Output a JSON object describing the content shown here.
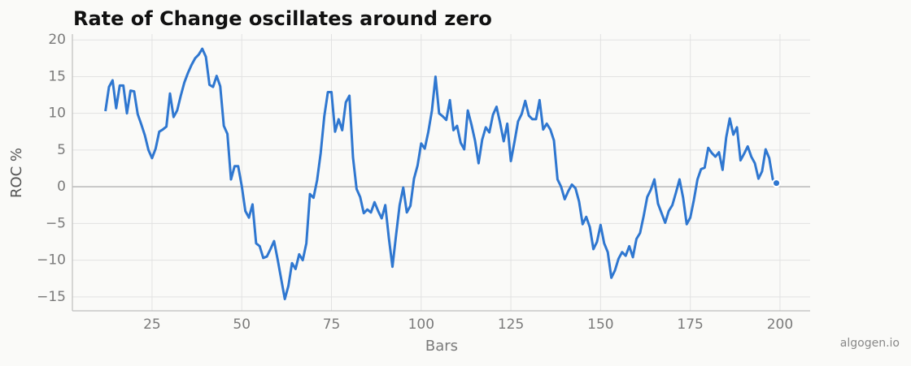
{
  "chart_data": {
    "type": "line",
    "title": "Rate of Change oscillates around zero",
    "x_label": "Bars",
    "y_label": "ROC %",
    "watermark": "algogen.io",
    "x": [
      12,
      13,
      14,
      15,
      16,
      17,
      18,
      19,
      20,
      21,
      22,
      23,
      24,
      25,
      26,
      27,
      28,
      29,
      30,
      31,
      32,
      33,
      34,
      35,
      36,
      37,
      38,
      39,
      40,
      41,
      42,
      43,
      44,
      45,
      46,
      47,
      48,
      49,
      50,
      51,
      52,
      53,
      54,
      55,
      56,
      57,
      58,
      59,
      60,
      61,
      62,
      63,
      64,
      65,
      66,
      67,
      68,
      69,
      70,
      71,
      72,
      73,
      74,
      75,
      76,
      77,
      78,
      79,
      80,
      81,
      82,
      83,
      84,
      85,
      86,
      87,
      88,
      89,
      90,
      91,
      92,
      93,
      94,
      95,
      96,
      97,
      98,
      99,
      100,
      101,
      102,
      103,
      104,
      105,
      106,
      107,
      108,
      109,
      110,
      111,
      112,
      113,
      114,
      115,
      116,
      117,
      118,
      119,
      120,
      121,
      122,
      123,
      124,
      125,
      126,
      127,
      128,
      129,
      130,
      131,
      132,
      133,
      134,
      135,
      136,
      137,
      138,
      139,
      140,
      141,
      142,
      143,
      144,
      145,
      146,
      147,
      148,
      149,
      150,
      151,
      152,
      153,
      154,
      155,
      156,
      157,
      158,
      159,
      160,
      161,
      162,
      163,
      164,
      165,
      166,
      167,
      168,
      169,
      170,
      171,
      172,
      173,
      174,
      175,
      176,
      177,
      178,
      179,
      180,
      181,
      182,
      183,
      184,
      185,
      186,
      187,
      188,
      189,
      190,
      191,
      192,
      193,
      194,
      195,
      196,
      197,
      198,
      199
    ],
    "series": [
      {
        "name": "ROC",
        "color": "#2f77d0",
        "values": [
          10.3,
          13.6,
          14.5,
          10.7,
          13.8,
          13.8,
          10.0,
          13.1,
          13.0,
          9.9,
          8.5,
          7.0,
          5.0,
          3.9,
          5.2,
          7.5,
          7.8,
          8.2,
          12.7,
          9.5,
          10.4,
          12.4,
          14.2,
          15.5,
          16.6,
          17.5,
          18.0,
          18.8,
          17.7,
          13.9,
          13.6,
          15.1,
          13.7,
          8.3,
          7.2,
          1.0,
          2.8,
          2.8,
          0.1,
          -3.3,
          -4.2,
          -2.4,
          -7.7,
          -8.1,
          -9.7,
          -9.5,
          -8.5,
          -7.4,
          -9.9,
          -12.6,
          -15.3,
          -13.5,
          -10.4,
          -11.2,
          -9.2,
          -10.0,
          -7.7,
          -1.0,
          -1.5,
          0.9,
          4.6,
          9.6,
          12.9,
          12.9,
          7.5,
          9.2,
          7.7,
          11.5,
          12.4,
          4.0,
          -0.3,
          -1.4,
          -3.6,
          -3.1,
          -3.5,
          -2.1,
          -3.3,
          -4.3,
          -2.5,
          -7.0,
          -10.9,
          -6.6,
          -2.5,
          -0.1,
          -3.5,
          -2.6,
          1.1,
          2.9,
          5.9,
          5.2,
          7.5,
          10.4,
          15.0,
          10.0,
          9.6,
          9.1,
          11.8,
          7.7,
          8.3,
          6.0,
          5.1,
          10.4,
          8.5,
          6.3,
          3.2,
          6.4,
          8.1,
          7.4,
          9.8,
          10.9,
          8.7,
          6.2,
          8.6,
          3.5,
          6.1,
          8.9,
          9.9,
          11.7,
          9.7,
          9.2,
          9.2,
          11.8,
          7.8,
          8.6,
          7.8,
          6.3,
          1.0,
          0.0,
          -1.7,
          -0.6,
          0.3,
          -0.2,
          -2.0,
          -5.1,
          -4.1,
          -5.5,
          -8.5,
          -7.5,
          -5.2,
          -7.7,
          -8.9,
          -12.4,
          -11.4,
          -9.8,
          -8.9,
          -9.4,
          -8.1,
          -9.6,
          -7.1,
          -6.3,
          -4.0,
          -1.4,
          -0.4,
          1.0,
          -2.3,
          -3.6,
          -4.9,
          -3.3,
          -2.5,
          -0.8,
          1.0,
          -1.5,
          -5.1,
          -4.2,
          -1.8,
          1.0,
          2.4,
          2.6,
          5.3,
          4.6,
          4.1,
          4.7,
          2.3,
          6.7,
          9.3,
          7.1,
          8.1,
          3.6,
          4.5,
          5.5,
          4.1,
          3.2,
          1.1,
          2.1,
          5.1,
          3.9,
          1.0,
          0.5
        ]
      }
    ],
    "xlim": [
      2.8,
      208.4
    ],
    "xticks": [
      25,
      50,
      75,
      100,
      125,
      150,
      175,
      200
    ],
    "ylim": [
      -16.9,
      20.8
    ],
    "yticks": [
      {
        "value": -15,
        "label": "−15"
      },
      {
        "value": -10,
        "label": "−10"
      },
      {
        "value": -5,
        "label": "−5"
      },
      0,
      5,
      10,
      15,
      20
    ],
    "grid": true,
    "zero_line": true,
    "mark_last_point": true
  }
}
